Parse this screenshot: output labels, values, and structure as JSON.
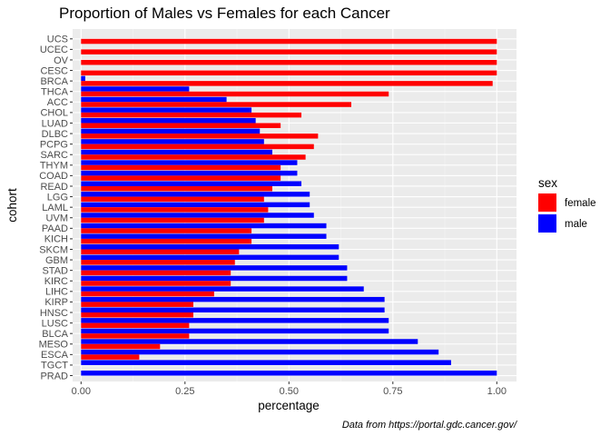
{
  "chart_data": {
    "type": "bar",
    "orientation": "horizontal",
    "title": "Proportion of Males vs Females for each Cancer",
    "xlabel": "percentage",
    "ylabel": "cohort",
    "xlim": [
      0,
      1
    ],
    "x_ticks": [
      "0.00",
      "0.25",
      "0.50",
      "0.75",
      "1.00"
    ],
    "grid": true,
    "legend_position": "right",
    "legend_title": "sex",
    "caption": "Data from https://portal.gdc.cancer.gov/",
    "categories": [
      "UCS",
      "UCEC",
      "OV",
      "CESC",
      "BRCA",
      "THCA",
      "ACC",
      "CHOL",
      "LUAD",
      "DLBC",
      "PCPG",
      "SARC",
      "THYM",
      "COAD",
      "READ",
      "LGG",
      "LAML",
      "UVM",
      "PAAD",
      "KICH",
      "SKCM",
      "GBM",
      "STAD",
      "KIRC",
      "LIHC",
      "KIRP",
      "HNSC",
      "LUSC",
      "BLCA",
      "MESO",
      "ESCA",
      "TGCT",
      "PRAD"
    ],
    "series": [
      {
        "name": "female",
        "color": "#ff0000",
        "values": [
          1.0,
          1.0,
          1.0,
          1.0,
          0.99,
          0.74,
          0.65,
          0.53,
          0.48,
          0.57,
          0.56,
          0.54,
          0.48,
          0.48,
          0.46,
          0.44,
          0.45,
          0.44,
          0.41,
          0.41,
          0.38,
          0.37,
          0.36,
          0.36,
          0.32,
          0.27,
          0.27,
          0.26,
          0.26,
          0.19,
          0.14,
          0.0,
          0.0
        ]
      },
      {
        "name": "male",
        "color": "#0000ff",
        "values": [
          0.0,
          0.0,
          0.0,
          0.0,
          0.01,
          0.26,
          0.35,
          0.41,
          0.42,
          0.43,
          0.44,
          0.46,
          0.52,
          0.52,
          0.53,
          0.55,
          0.55,
          0.56,
          0.59,
          0.59,
          0.62,
          0.62,
          0.64,
          0.64,
          0.68,
          0.73,
          0.73,
          0.74,
          0.74,
          0.81,
          0.86,
          0.89,
          1.0
        ]
      }
    ]
  }
}
